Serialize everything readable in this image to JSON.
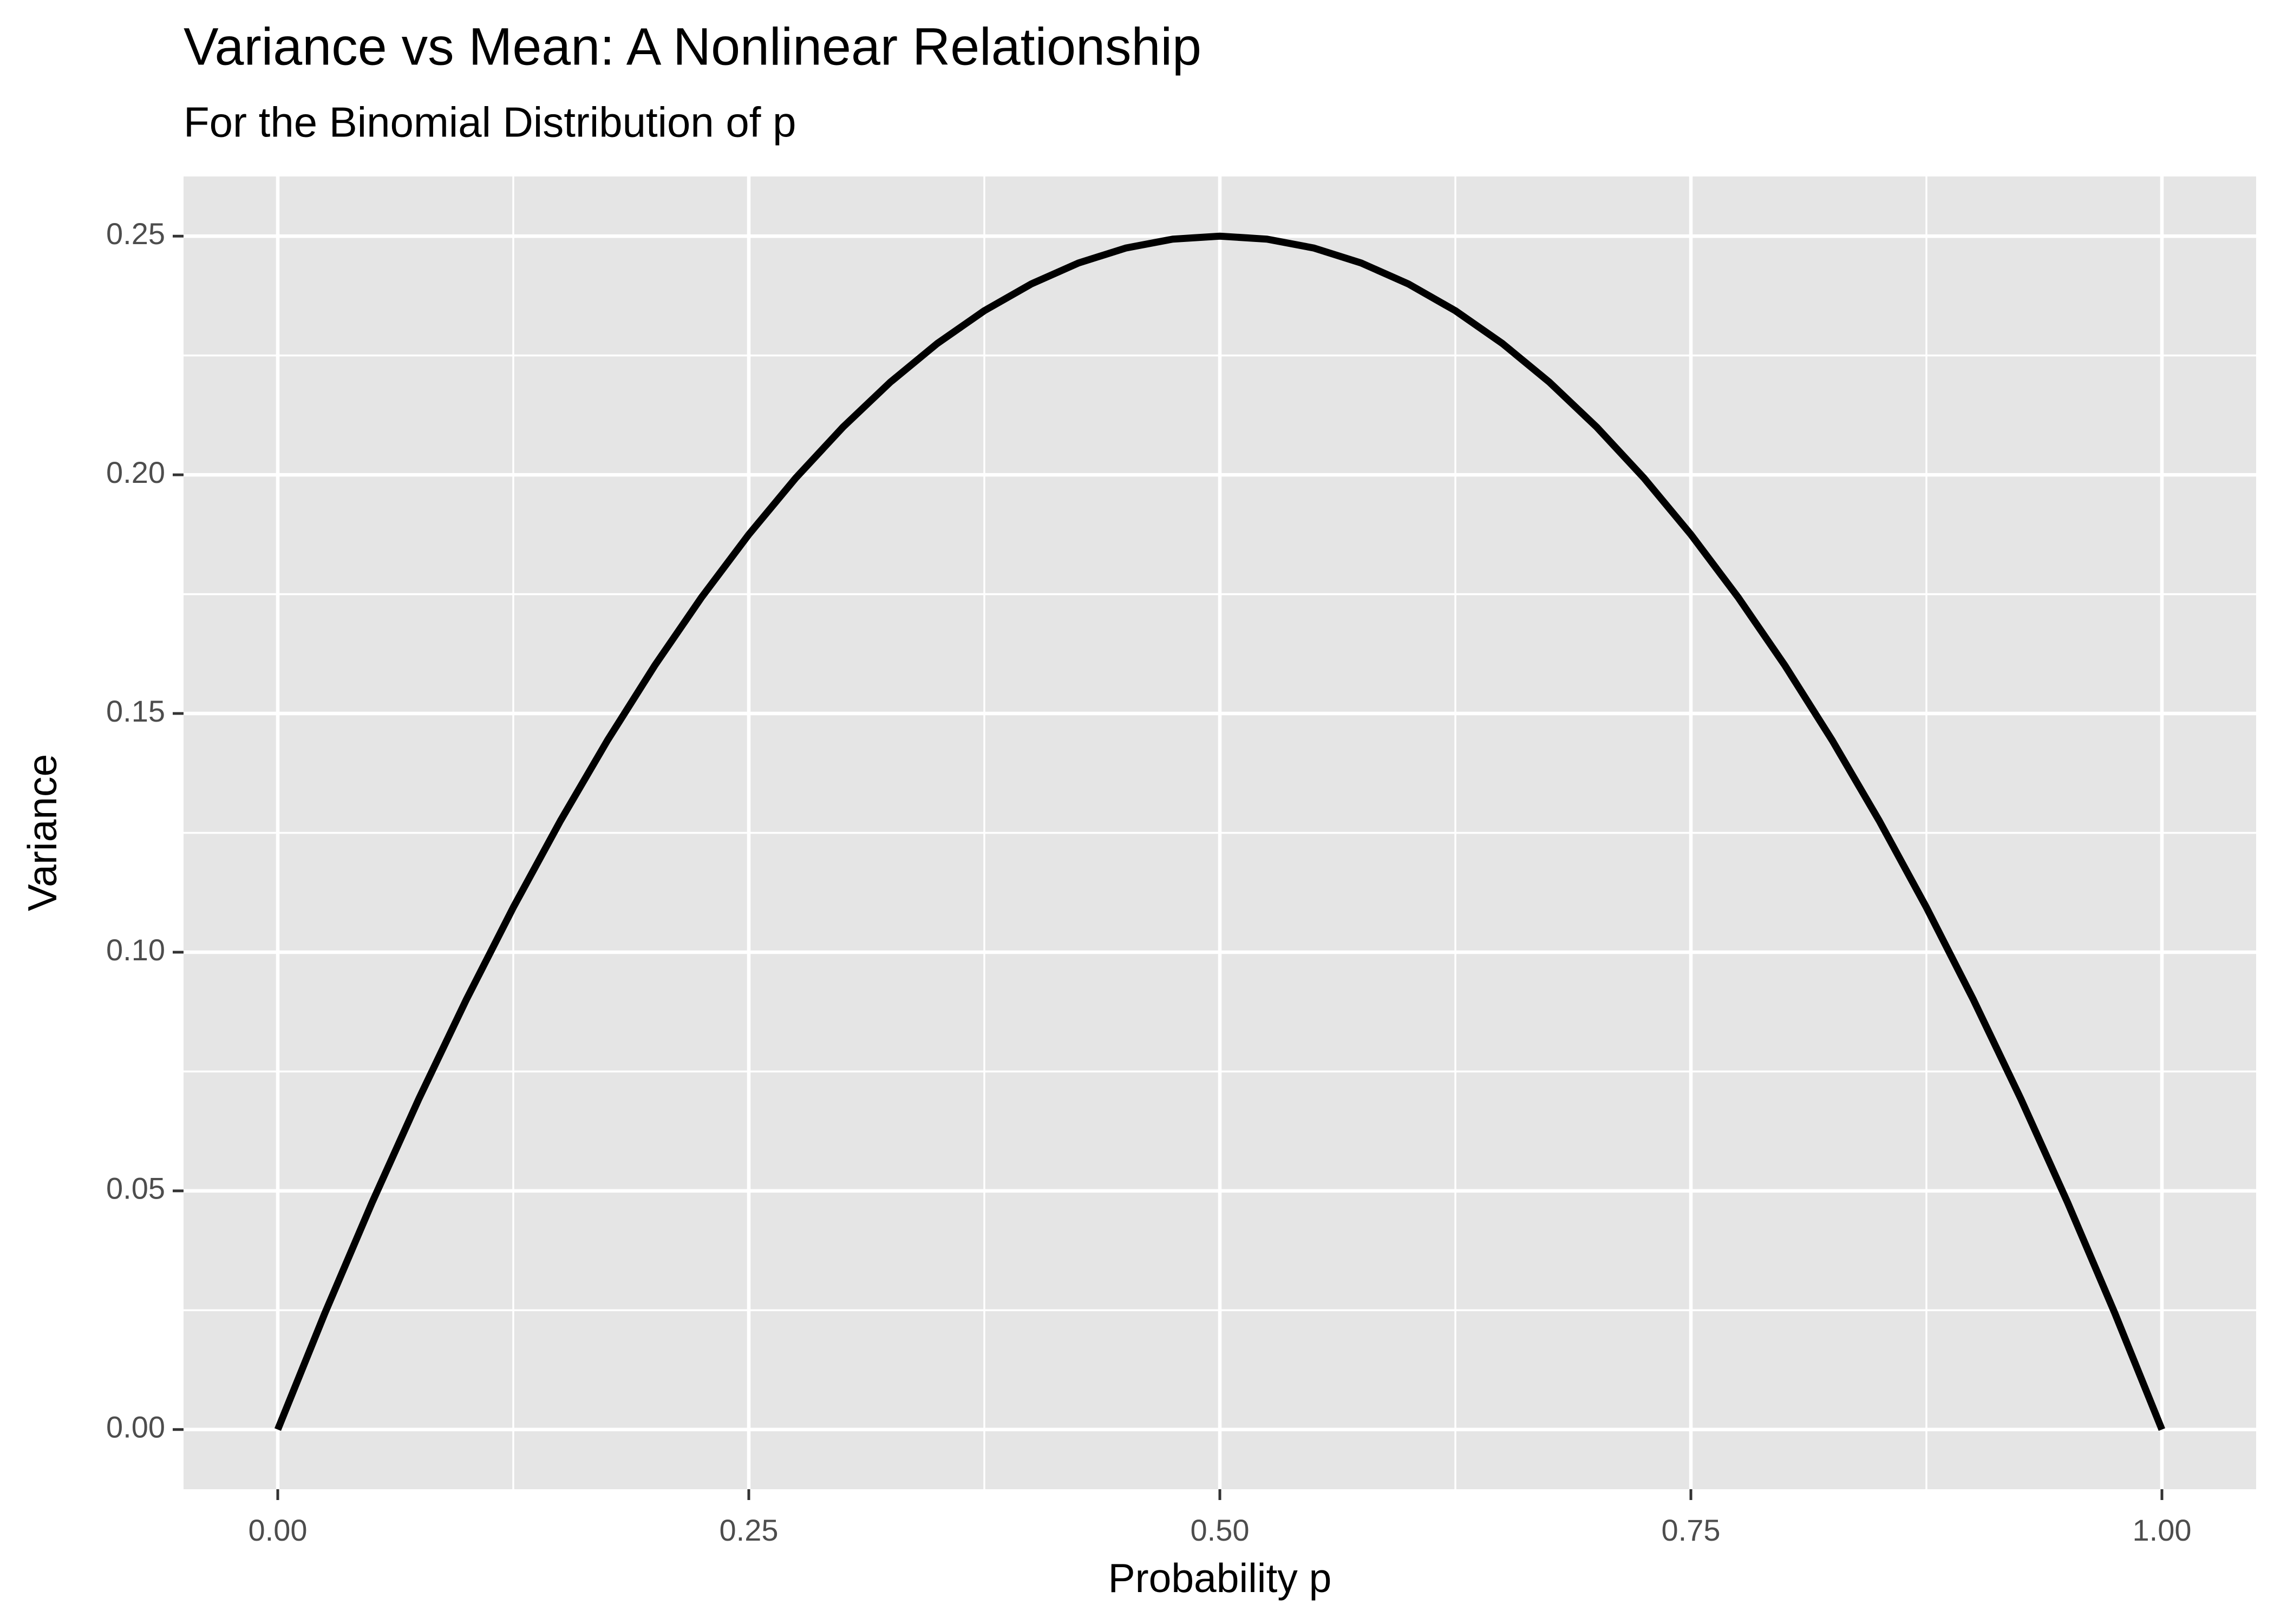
{
  "chart_data": {
    "type": "line",
    "title": "Variance vs Mean: A Nonlinear Relationship",
    "subtitle": "For the Binomial Distribution of p",
    "x_label": "Probability p",
    "y_label": "Variance",
    "x": [
      0,
      0.025,
      0.05,
      0.075,
      0.1,
      0.125,
      0.15,
      0.175,
      0.2,
      0.225,
      0.25,
      0.275,
      0.3,
      0.325,
      0.35,
      0.375,
      0.4,
      0.425,
      0.45,
      0.475,
      0.5,
      0.525,
      0.55,
      0.575,
      0.6,
      0.625,
      0.65,
      0.675,
      0.7,
      0.725,
      0.75,
      0.775,
      0.8,
      0.825,
      0.85,
      0.875,
      0.9,
      0.925,
      0.95,
      0.975,
      1
    ],
    "series": [
      {
        "color": "#000000",
        "values": [
          0,
          0.024375,
          0.0475,
          0.069375,
          0.09,
          0.109375,
          0.1275,
          0.144375,
          0.16,
          0.174375,
          0.1875,
          0.199375,
          0.21,
          0.219375,
          0.2275,
          0.234375,
          0.24,
          0.244375,
          0.2475,
          0.249375,
          0.25,
          0.249375,
          0.2475,
          0.244375,
          0.24,
          0.234375,
          0.2275,
          0.219375,
          0.21,
          0.199375,
          0.1875,
          0.174375,
          0.16,
          0.144375,
          0.1275,
          0.109375,
          0.09,
          0.069375,
          0.0475,
          0.024375,
          0
        ]
      }
    ],
    "xlim": [
      -0.05,
      1.05
    ],
    "ylim": [
      -0.0125,
      0.2625
    ],
    "xticks": [
      {
        "value": 0,
        "label": "0.00"
      },
      {
        "value": 0.25,
        "label": "0.25"
      },
      {
        "value": 0.5,
        "label": "0.50"
      },
      {
        "value": 0.75,
        "label": "0.75"
      },
      {
        "value": 1,
        "label": "1.00"
      }
    ],
    "yticks": [
      {
        "value": 0,
        "label": "0.00"
      },
      {
        "value": 0.05,
        "label": "0.05"
      },
      {
        "value": 0.1,
        "label": "0.10"
      },
      {
        "value": 0.15,
        "label": "0.15"
      },
      {
        "value": 0.2,
        "label": "0.20"
      },
      {
        "value": 0.25,
        "label": "0.25"
      }
    ],
    "grid": true
  }
}
